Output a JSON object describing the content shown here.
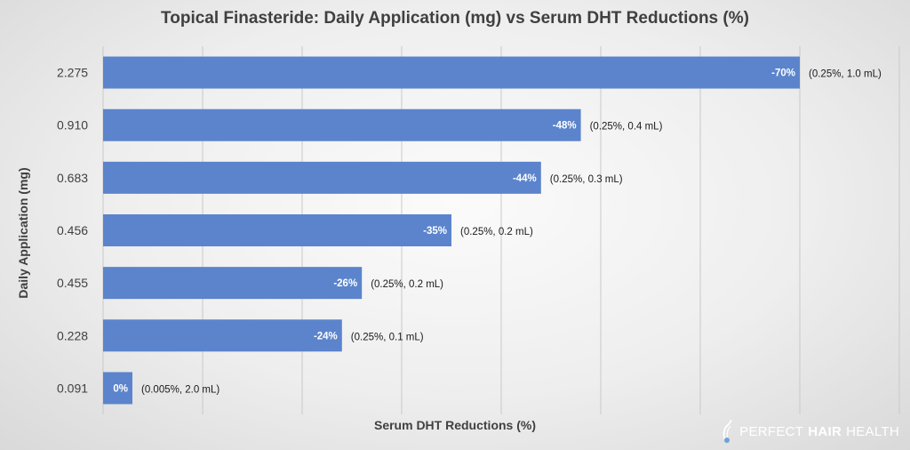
{
  "chart_data": {
    "type": "bar",
    "orientation": "horizontal",
    "title": "Topical Finasteride: Daily Application (mg) vs Serum DHT Reductions (%)",
    "xlabel": "Serum DHT Reductions (%)",
    "ylabel": "Daily Application (mg)",
    "categories": [
      "2.275",
      "0.910",
      "0.683",
      "0.456",
      "0.455",
      "0.228",
      "0.091"
    ],
    "values": [
      -70,
      -48,
      -44,
      -35,
      -26,
      -24,
      0
    ],
    "value_labels": [
      "-70%",
      "-48%",
      "-44%",
      "-35%",
      "-26%",
      "-24%",
      "0%"
    ],
    "annotations": [
      "(0.25%, 1.0 mL)",
      "(0.25%, 0.4 mL)",
      "(0.25%, 0.3 mL)",
      "(0.25%, 0.2 mL)",
      "(0.25%, 0.2 mL)",
      "(0.25%, 0.1 mL)",
      "(0.005%, 2.0 mL)"
    ],
    "xlim": [
      0,
      -80
    ],
    "grid": true,
    "bar_color": "#5b84cc"
  },
  "logo": {
    "part1": "PERFECT",
    "part2": "HAIR",
    "part3": "HEALTH"
  }
}
